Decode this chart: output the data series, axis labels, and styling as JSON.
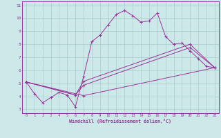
{
  "xlabel": "Windchill (Refroidissement éolien,°C)",
  "background_color": "#cce8e8",
  "line_color": "#993399",
  "grid_color": "#aacccc",
  "xlim": [
    -0.5,
    23.5
  ],
  "ylim": [
    2.7,
    11.3
  ],
  "yticks": [
    3,
    4,
    5,
    6,
    7,
    8,
    9,
    10,
    11
  ],
  "xticks": [
    0,
    1,
    2,
    3,
    4,
    5,
    6,
    7,
    8,
    9,
    10,
    11,
    12,
    13,
    14,
    15,
    16,
    17,
    18,
    19,
    20,
    21,
    22,
    23
  ],
  "line1_x": [
    0,
    1,
    2,
    3,
    4,
    5,
    6,
    7,
    8,
    9,
    10,
    11,
    12,
    13,
    14,
    15,
    16,
    17,
    18,
    19,
    20,
    21,
    22,
    23
  ],
  "line1_y": [
    5.1,
    4.2,
    3.5,
    3.9,
    4.3,
    4.1,
    3.2,
    5.5,
    8.2,
    8.7,
    9.5,
    10.3,
    10.6,
    10.2,
    9.7,
    9.8,
    10.4,
    8.6,
    8.0,
    8.1,
    7.5,
    6.9,
    6.3,
    6.2
  ],
  "line2_x": [
    0,
    6,
    7,
    20,
    23
  ],
  "line2_y": [
    5.1,
    4.1,
    5.15,
    8.0,
    6.2
  ],
  "line3_x": [
    0,
    6,
    7,
    20,
    23
  ],
  "line3_y": [
    5.1,
    4.1,
    4.85,
    7.75,
    6.2
  ],
  "line4_x": [
    0,
    7,
    23
  ],
  "line4_y": [
    5.1,
    4.05,
    6.2
  ]
}
